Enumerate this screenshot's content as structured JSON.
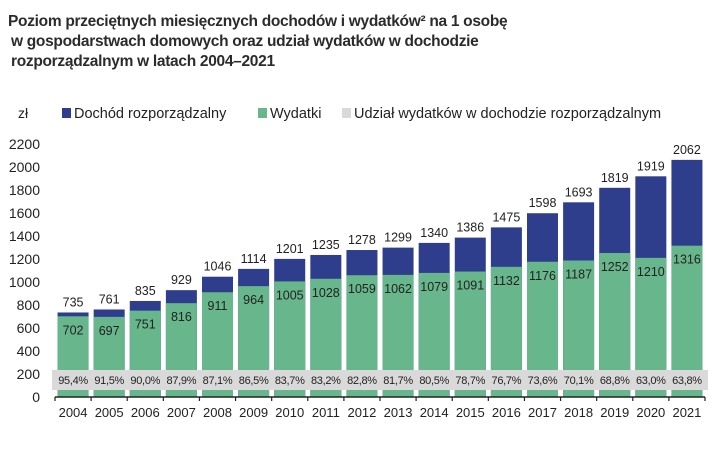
{
  "chart_data": {
    "type": "bar",
    "stacked": true,
    "title_lines": [
      "Poziom przeciętnych miesięcznych dochodów i wydatków² na 1 osobę",
      "w gospodarstwach domowych oraz udział wydatków w dochodzie",
      "rozporządzalnym w latach 2004–2021"
    ],
    "ylabel": "zł",
    "ylim": [
      0,
      2200
    ],
    "yticks": [
      0,
      200,
      400,
      600,
      800,
      1000,
      1200,
      1400,
      1600,
      1800,
      2000,
      2200
    ],
    "categories": [
      "2004",
      "2005",
      "2006",
      "2007",
      "2008",
      "2009",
      "2010",
      "2011",
      "2012",
      "2013",
      "2014",
      "2015",
      "2016",
      "2017",
      "2018",
      "2019",
      "2020",
      "2021"
    ],
    "series": [
      {
        "name": "Dochód rozporządzalny",
        "color": "#2e3d8c",
        "values": [
          735,
          761,
          835,
          929,
          1046,
          1114,
          1201,
          1235,
          1278,
          1299,
          1340,
          1386,
          1475,
          1598,
          1693,
          1819,
          1919,
          2062
        ]
      },
      {
        "name": "Wydatki",
        "color": "#67b68c",
        "values": [
          702,
          697,
          751,
          816,
          911,
          964,
          1005,
          1028,
          1059,
          1062,
          1079,
          1091,
          1132,
          1176,
          1187,
          1252,
          1210,
          1316
        ]
      },
      {
        "name": "Udział wydatków w dochodzie rozporządzalnym",
        "color": "#d9d9d9",
        "values": [
          "95,4%",
          "91,5%",
          "90,0%",
          "87,9%",
          "87,1%",
          "86,5%",
          "83,7%",
          "83,2%",
          "82,8%",
          "81,7%",
          "80,5%",
          "78,7%",
          "76,7%",
          "73,6%",
          "70,1%",
          "68,8%",
          "63,0%",
          "63,8%"
        ]
      }
    ],
    "legend": "top",
    "grid": false
  }
}
